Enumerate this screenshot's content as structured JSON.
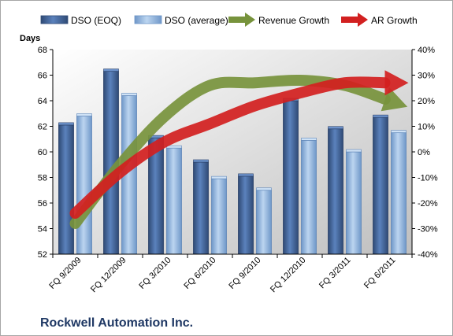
{
  "chart_data": {
    "type": "bar",
    "title": "Rockwell Automation Inc.",
    "ylabel": "Days",
    "categories": [
      "FQ 9/2009",
      "FQ 12/2009",
      "FQ 3/2010",
      "FQ 6/2010",
      "FQ 9/2010",
      "FQ 12/2010",
      "FQ 3/2011",
      "FQ 6/2011"
    ],
    "ylim": [
      52,
      68
    ],
    "yticks": [
      "52",
      "54",
      "56",
      "58",
      "60",
      "62",
      "64",
      "66",
      "68"
    ],
    "y2lim": [
      -40,
      40
    ],
    "y2ticks": [
      "-40%",
      "-30%",
      "-20%",
      "-10%",
      "0%",
      "10%",
      "20%",
      "30%",
      "40%"
    ],
    "series": [
      {
        "name": "DSO (EOQ)",
        "kind": "bar",
        "axis": "left",
        "color": "#4a6fa5",
        "values": [
          62.1,
          66.3,
          61.1,
          59.2,
          58.1,
          64.0,
          61.8,
          62.7
        ]
      },
      {
        "name": "DSO (average)",
        "kind": "bar",
        "axis": "left",
        "color": "#8db4e2",
        "values": [
          62.8,
          64.4,
          60.3,
          57.9,
          57.0,
          60.9,
          60.0,
          61.5
        ]
      },
      {
        "name": "Revenue Growth",
        "kind": "arrow-line",
        "axis": "right",
        "color": "#77933c",
        "values": [
          -28,
          -5,
          14,
          26,
          27,
          28,
          26,
          20
        ]
      },
      {
        "name": "AR Growth",
        "kind": "arrow-line",
        "axis": "right",
        "color": "#d22020",
        "values": [
          -24,
          -8,
          4,
          11,
          18,
          23,
          27,
          27
        ]
      }
    ],
    "grid": false,
    "legend": "top"
  }
}
